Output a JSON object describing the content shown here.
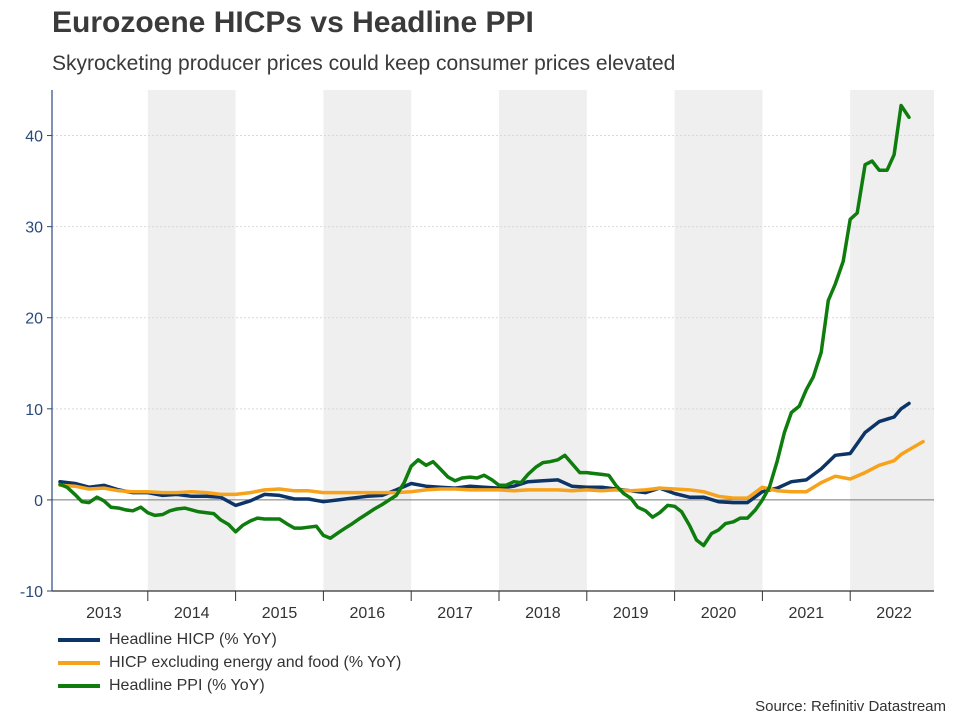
{
  "chart_data": {
    "type": "line",
    "title": "Eurozoene HICPs vs Headline PPI",
    "subtitle": "Skyrocketing producer prices could keep consumer prices elevated",
    "xlabel": "",
    "ylabel": "",
    "ylim": [
      -10,
      45
    ],
    "yticks": [
      -10,
      0,
      10,
      20,
      30,
      40
    ],
    "year_labels": [
      "2013",
      "2014",
      "2015",
      "2016",
      "2017",
      "2018",
      "2019",
      "2020",
      "2021",
      "2022"
    ],
    "x_range": [
      2013.0,
      2022.917
    ],
    "shaded_years": [
      2014,
      2016,
      2018,
      2020,
      2022
    ],
    "source": "Source: Refinitiv Datastream",
    "series": [
      {
        "name": "Headline HICP (% YoY)",
        "color": "#0d3466",
        "points": [
          [
            2013.0,
            2.0
          ],
          [
            2013.17,
            1.8
          ],
          [
            2013.33,
            1.4
          ],
          [
            2013.5,
            1.6
          ],
          [
            2013.67,
            1.1
          ],
          [
            2013.83,
            0.8
          ],
          [
            2014.0,
            0.8
          ],
          [
            2014.17,
            0.5
          ],
          [
            2014.33,
            0.6
          ],
          [
            2014.5,
            0.4
          ],
          [
            2014.67,
            0.4
          ],
          [
            2014.83,
            0.3
          ],
          [
            2015.0,
            -0.6
          ],
          [
            2015.17,
            -0.1
          ],
          [
            2015.33,
            0.6
          ],
          [
            2015.5,
            0.5
          ],
          [
            2015.67,
            0.1
          ],
          [
            2015.83,
            0.1
          ],
          [
            2016.0,
            -0.2
          ],
          [
            2016.17,
            0.0
          ],
          [
            2016.33,
            0.2
          ],
          [
            2016.5,
            0.4
          ],
          [
            2016.67,
            0.5
          ],
          [
            2016.83,
            1.1
          ],
          [
            2017.0,
            1.8
          ],
          [
            2017.17,
            1.5
          ],
          [
            2017.33,
            1.4
          ],
          [
            2017.5,
            1.3
          ],
          [
            2017.67,
            1.5
          ],
          [
            2017.83,
            1.4
          ],
          [
            2018.0,
            1.3
          ],
          [
            2018.17,
            1.5
          ],
          [
            2018.33,
            2.0
          ],
          [
            2018.5,
            2.1
          ],
          [
            2018.67,
            2.2
          ],
          [
            2018.83,
            1.5
          ],
          [
            2019.0,
            1.4
          ],
          [
            2019.17,
            1.4
          ],
          [
            2019.33,
            1.2
          ],
          [
            2019.5,
            1.0
          ],
          [
            2019.67,
            0.8
          ],
          [
            2019.83,
            1.3
          ],
          [
            2020.0,
            0.7
          ],
          [
            2020.17,
            0.3
          ],
          [
            2020.33,
            0.3
          ],
          [
            2020.5,
            -0.2
          ],
          [
            2020.67,
            -0.3
          ],
          [
            2020.83,
            -0.3
          ],
          [
            2021.0,
            0.9
          ],
          [
            2021.17,
            1.3
          ],
          [
            2021.33,
            2.0
          ],
          [
            2021.5,
            2.2
          ],
          [
            2021.67,
            3.4
          ],
          [
            2021.83,
            4.9
          ],
          [
            2022.0,
            5.1
          ],
          [
            2022.17,
            7.4
          ],
          [
            2022.33,
            8.6
          ],
          [
            2022.5,
            9.1
          ],
          [
            2022.58,
            10.0
          ],
          [
            2022.67,
            10.6
          ]
        ]
      },
      {
        "name": "HICP excluding energy and food (% YoY)",
        "color": "#f7a21b",
        "points": [
          [
            2013.0,
            1.6
          ],
          [
            2013.17,
            1.5
          ],
          [
            2013.33,
            1.2
          ],
          [
            2013.5,
            1.3
          ],
          [
            2013.67,
            1.0
          ],
          [
            2013.83,
            0.9
          ],
          [
            2014.0,
            0.9
          ],
          [
            2014.17,
            0.8
          ],
          [
            2014.33,
            0.8
          ],
          [
            2014.5,
            0.9
          ],
          [
            2014.67,
            0.8
          ],
          [
            2014.83,
            0.6
          ],
          [
            2015.0,
            0.6
          ],
          [
            2015.17,
            0.8
          ],
          [
            2015.33,
            1.1
          ],
          [
            2015.5,
            1.2
          ],
          [
            2015.67,
            1.0
          ],
          [
            2015.83,
            1.0
          ],
          [
            2016.0,
            0.8
          ],
          [
            2016.17,
            0.8
          ],
          [
            2016.33,
            0.8
          ],
          [
            2016.5,
            0.8
          ],
          [
            2016.67,
            0.8
          ],
          [
            2016.83,
            0.8
          ],
          [
            2017.0,
            0.9
          ],
          [
            2017.17,
            1.1
          ],
          [
            2017.33,
            1.2
          ],
          [
            2017.5,
            1.2
          ],
          [
            2017.67,
            1.1
          ],
          [
            2017.83,
            1.1
          ],
          [
            2018.0,
            1.1
          ],
          [
            2018.17,
            1.0
          ],
          [
            2018.33,
            1.1
          ],
          [
            2018.5,
            1.1
          ],
          [
            2018.67,
            1.1
          ],
          [
            2018.83,
            1.0
          ],
          [
            2019.0,
            1.1
          ],
          [
            2019.17,
            1.0
          ],
          [
            2019.33,
            1.1
          ],
          [
            2019.5,
            1.0
          ],
          [
            2019.67,
            1.1
          ],
          [
            2019.83,
            1.3
          ],
          [
            2020.0,
            1.2
          ],
          [
            2020.17,
            1.1
          ],
          [
            2020.33,
            0.9
          ],
          [
            2020.5,
            0.4
          ],
          [
            2020.67,
            0.2
          ],
          [
            2020.83,
            0.2
          ],
          [
            2021.0,
            1.4
          ],
          [
            2021.17,
            1.0
          ],
          [
            2021.33,
            0.9
          ],
          [
            2021.5,
            0.9
          ],
          [
            2021.67,
            1.9
          ],
          [
            2021.83,
            2.6
          ],
          [
            2022.0,
            2.3
          ],
          [
            2022.17,
            3.0
          ],
          [
            2022.33,
            3.8
          ],
          [
            2022.5,
            4.3
          ],
          [
            2022.58,
            5.0
          ],
          [
            2022.67,
            5.5
          ],
          [
            2022.83,
            6.4
          ]
        ]
      },
      {
        "name": "Headline PPI (% YoY)",
        "color": "#0e7d0e",
        "points": [
          [
            2013.0,
            1.7
          ],
          [
            2013.08,
            1.4
          ],
          [
            2013.17,
            0.6
          ],
          [
            2013.25,
            -0.2
          ],
          [
            2013.33,
            -0.3
          ],
          [
            2013.42,
            0.3
          ],
          [
            2013.5,
            -0.1
          ],
          [
            2013.58,
            -0.8
          ],
          [
            2013.67,
            -0.9
          ],
          [
            2013.75,
            -1.1
          ],
          [
            2013.83,
            -1.2
          ],
          [
            2013.92,
            -0.8
          ],
          [
            2014.0,
            -1.4
          ],
          [
            2014.08,
            -1.7
          ],
          [
            2014.17,
            -1.6
          ],
          [
            2014.25,
            -1.2
          ],
          [
            2014.33,
            -1.0
          ],
          [
            2014.42,
            -0.9
          ],
          [
            2014.5,
            -1.1
          ],
          [
            2014.58,
            -1.3
          ],
          [
            2014.67,
            -1.4
          ],
          [
            2014.75,
            -1.5
          ],
          [
            2014.83,
            -2.2
          ],
          [
            2014.92,
            -2.7
          ],
          [
            2015.0,
            -3.5
          ],
          [
            2015.08,
            -2.8
          ],
          [
            2015.17,
            -2.3
          ],
          [
            2015.25,
            -2.0
          ],
          [
            2015.33,
            -2.1
          ],
          [
            2015.42,
            -2.1
          ],
          [
            2015.5,
            -2.1
          ],
          [
            2015.58,
            -2.6
          ],
          [
            2015.67,
            -3.1
          ],
          [
            2015.75,
            -3.1
          ],
          [
            2015.83,
            -3.0
          ],
          [
            2015.92,
            -2.9
          ],
          [
            2016.0,
            -3.9
          ],
          [
            2016.08,
            -4.2
          ],
          [
            2016.17,
            -3.6
          ],
          [
            2016.25,
            -3.1
          ],
          [
            2016.33,
            -2.6
          ],
          [
            2016.42,
            -2.0
          ],
          [
            2016.5,
            -1.5
          ],
          [
            2016.58,
            -1.0
          ],
          [
            2016.67,
            -0.5
          ],
          [
            2016.75,
            0.0
          ],
          [
            2016.83,
            0.5
          ],
          [
            2016.92,
            1.9
          ],
          [
            2017.0,
            3.7
          ],
          [
            2017.08,
            4.4
          ],
          [
            2017.17,
            3.8
          ],
          [
            2017.25,
            4.2
          ],
          [
            2017.33,
            3.4
          ],
          [
            2017.42,
            2.5
          ],
          [
            2017.5,
            2.1
          ],
          [
            2017.58,
            2.4
          ],
          [
            2017.67,
            2.5
          ],
          [
            2017.75,
            2.4
          ],
          [
            2017.83,
            2.7
          ],
          [
            2017.92,
            2.2
          ],
          [
            2018.0,
            1.6
          ],
          [
            2018.08,
            1.6
          ],
          [
            2018.17,
            2.0
          ],
          [
            2018.25,
            1.9
          ],
          [
            2018.33,
            2.8
          ],
          [
            2018.42,
            3.6
          ],
          [
            2018.5,
            4.1
          ],
          [
            2018.58,
            4.2
          ],
          [
            2018.67,
            4.4
          ],
          [
            2018.75,
            4.9
          ],
          [
            2018.83,
            4.0
          ],
          [
            2018.92,
            3.0
          ],
          [
            2019.0,
            3.0
          ],
          [
            2019.08,
            2.9
          ],
          [
            2019.17,
            2.8
          ],
          [
            2019.25,
            2.7
          ],
          [
            2019.33,
            1.6
          ],
          [
            2019.42,
            0.7
          ],
          [
            2019.5,
            0.2
          ],
          [
            2019.58,
            -0.8
          ],
          [
            2019.67,
            -1.2
          ],
          [
            2019.75,
            -1.9
          ],
          [
            2019.83,
            -1.4
          ],
          [
            2019.92,
            -0.6
          ],
          [
            2020.0,
            -0.7
          ],
          [
            2020.08,
            -1.3
          ],
          [
            2020.17,
            -2.8
          ],
          [
            2020.25,
            -4.4
          ],
          [
            2020.33,
            -5.0
          ],
          [
            2020.42,
            -3.7
          ],
          [
            2020.5,
            -3.3
          ],
          [
            2020.58,
            -2.6
          ],
          [
            2020.67,
            -2.4
          ],
          [
            2020.75,
            -2.0
          ],
          [
            2020.83,
            -2.0
          ],
          [
            2020.92,
            -1.1
          ],
          [
            2021.0,
            0.0
          ],
          [
            2021.08,
            1.4
          ],
          [
            2021.17,
            4.3
          ],
          [
            2021.25,
            7.4
          ],
          [
            2021.33,
            9.6
          ],
          [
            2021.42,
            10.3
          ],
          [
            2021.5,
            12.1
          ],
          [
            2021.58,
            13.5
          ],
          [
            2021.67,
            16.2
          ],
          [
            2021.75,
            21.9
          ],
          [
            2021.83,
            23.7
          ],
          [
            2021.92,
            26.2
          ],
          [
            2022.0,
            30.8
          ],
          [
            2022.08,
            31.5
          ],
          [
            2022.17,
            36.8
          ],
          [
            2022.25,
            37.2
          ],
          [
            2022.33,
            36.2
          ],
          [
            2022.42,
            36.2
          ],
          [
            2022.5,
            37.9
          ],
          [
            2022.58,
            43.3
          ],
          [
            2022.67,
            42.0
          ]
        ]
      }
    ]
  }
}
